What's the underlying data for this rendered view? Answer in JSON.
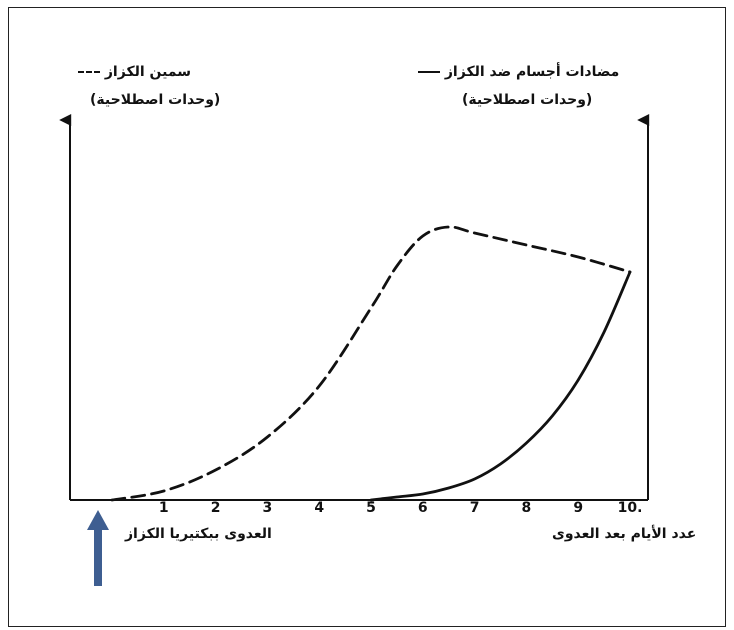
{
  "chart_data": {
    "type": "line",
    "title": "",
    "xlabel": "عدد الأيام بعد العدوى",
    "x_ticks": [
      "1",
      "2",
      "3",
      "4",
      "5",
      "6",
      "7",
      "8",
      "9",
      "10."
    ],
    "xlim": [
      -0.4,
      10.3
    ],
    "ylim": [
      0,
      100
    ],
    "grid": false,
    "annotation": {
      "text": "العدوى ببكتيريا الكزاز",
      "x": 0
    },
    "series": [
      {
        "name": "سمين الكزاز",
        "unit": "(وحدات اصطلاحية)",
        "style": "dashed",
        "x": [
          0,
          1,
          2,
          3,
          4,
          5,
          5.5,
          6,
          6.5,
          7,
          8,
          9,
          10
        ],
        "values": [
          0,
          3,
          10,
          21,
          38,
          64,
          78,
          88,
          91,
          89,
          85,
          81,
          76
        ]
      },
      {
        "name": "مضادات أجسام ضد الكزاز",
        "unit": "(وحدات اصطلاحية)",
        "style": "solid",
        "x": [
          5,
          5.5,
          6,
          6.5,
          7,
          7.5,
          8,
          8.5,
          9,
          9.5,
          10
        ],
        "values": [
          0,
          1,
          2,
          4,
          7,
          12,
          19,
          28,
          40,
          56,
          76
        ]
      }
    ],
    "colors": {
      "line": "#111111",
      "arrow": "#3e5e91"
    }
  }
}
